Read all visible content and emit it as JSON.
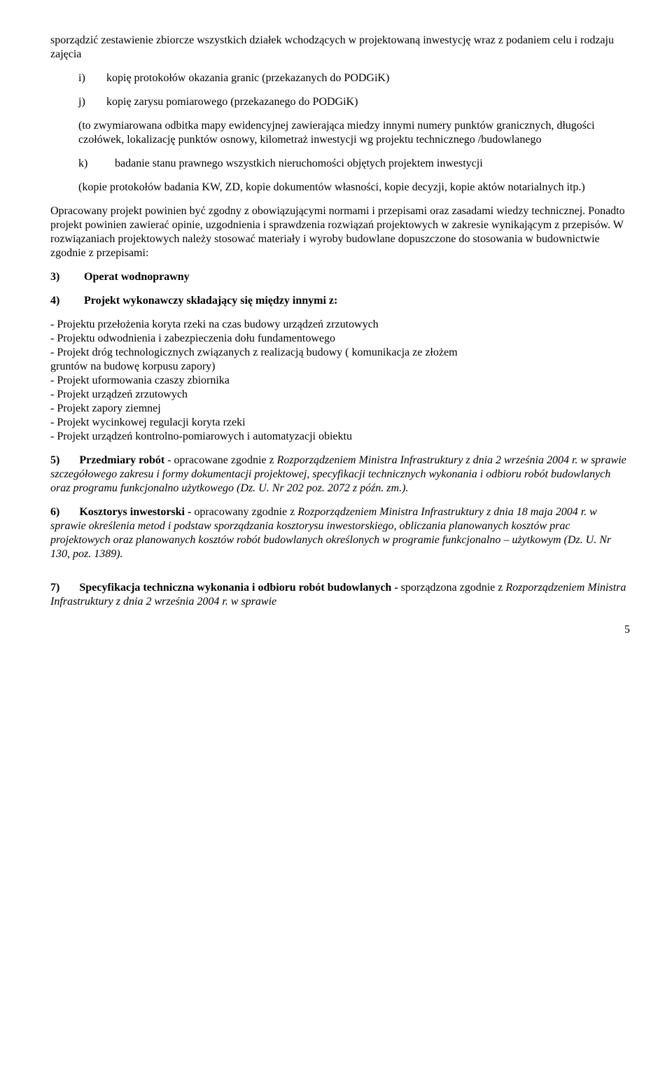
{
  "intro": "sporządzić zestawienie zbiorcze wszystkich działek wchodzących w projektowaną inwestycję wraz z podaniem celu i rodzaju zajęcia",
  "items": {
    "i": {
      "marker": "i)",
      "text": "kopię protokołów okazania granic (przekazanych do PODGiK)"
    },
    "j": {
      "marker": "j)",
      "text": "kopię zarysu pomiarowego (przekazanego do PODGiK)"
    },
    "j_paren": "(to zwymiarowana odbitka mapy ewidencyjnej zawierająca miedzy innymi numery punktów granicznych, długości czołówek, lokalizację punktów osnowy, kilometraż inwestycji wg projektu technicznego /budowlanego",
    "k": {
      "marker": "k)",
      "text": "badanie stanu prawnego wszystkich nieruchomości objętych projektem inwestycji"
    },
    "k_paren": "(kopie protokołów badania KW, ZD, kopie dokumentów własności, kopie decyzji, kopie aktów notarialnych itp.)"
  },
  "para_compliance": "Opracowany projekt powinien być zgodny z obowiązującymi normami i przepisami oraz zasadami wiedzy technicznej. Ponadto projekt powinien zawierać opinie, uzgodnienia i sprawdzenia rozwiązań projektowych w zakresie wynikającym z przepisów. W rozwiązaniach projektowych należy stosować materiały i wyroby budowlane dopuszczone do stosowania  w budownictwie zgodnie z przepisami:",
  "n3": {
    "marker": "3)",
    "title": "Operat wodnoprawny"
  },
  "n4": {
    "marker": "4)",
    "title": "Projekt wykonawczy składający się między innymi z:"
  },
  "n4_list": [
    "- Projektu przełożenia koryta rzeki na czas budowy urządzeń zrzutowych",
    "-  Projektu odwodnienia i zabezpieczenia dołu fundamentowego",
    "- Projekt dróg technologicznych związanych z realizacją budowy ( komunikacja ze złożem",
    "  gruntów na budowę korpusu zapory)",
    "- Projekt uformowania czaszy zbiornika",
    "- Projekt urządzeń zrzutowych",
    "- Projekt zapory ziemnej",
    "- Projekt wycinkowej regulacji koryta rzeki",
    "- Projekt urządzeń kontrolno-pomiarowych i automatyzacji obiektu"
  ],
  "n5": {
    "marker": "5)",
    "title": "Przedmiary robót",
    "rest_plain": " - opracowane zgodnie z ",
    "rest_italic": "Rozporządzeniem Ministra Infrastruktury   z dnia 2 września 2004 r. w sprawie szczegółowego zakresu i formy dokumentacji projektowej, specyfikacji technicznych wykonania i odbioru robót budowlanych oraz programu funkcjonalno użytkowego (Dz. U. Nr 202  poz. 2072 z późn. zm.)."
  },
  "n6": {
    "marker": "6)",
    "title": "Kosztorys inwestorski -",
    "rest_plain": " opracowany zgodnie z ",
    "rest_italic": "Rozporządzeniem Ministra Infrastruktury z dnia 18 maja 2004 r. w sprawie określenia metod i podstaw sporządzania kosztorysu inwestorskiego, obliczania planowanych kosztów prac projektowych oraz planowanych kosztów robót budowlanych określonych w programie funkcjonalno – użytkowym (Dz. U. Nr 130, poz. 1389)."
  },
  "n7": {
    "marker": "7)",
    "title": "Specyfikacja techniczna wykonania i odbioru robót budowlanych -",
    "rest_plain": " sporządzona zgodnie z ",
    "rest_italic": "Rozporządzeniem Ministra Infrastruktury z dnia 2 września 2004 r. w sprawie"
  },
  "page_number": "5"
}
